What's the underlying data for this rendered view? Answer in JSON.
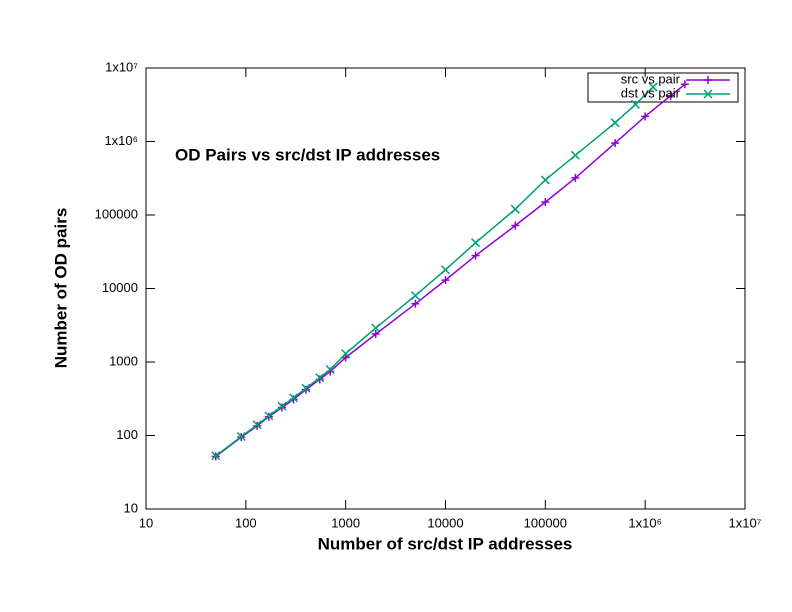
{
  "chart_data": {
    "type": "line",
    "title": "OD Pairs vs src/dst IP addresses",
    "x_label": "Number of src/dst IP addresses",
    "y_label": "Number of OD pairs",
    "log_x": true,
    "log_y": true,
    "legend": "top-right",
    "xlim": [
      10,
      10000000
    ],
    "ylim": [
      10,
      10000000
    ],
    "xticks": [
      10,
      100,
      1000,
      10000,
      100000,
      {
        "value": 1000000,
        "label": "1x10⁶"
      },
      {
        "value": 10000000,
        "label": "1x10⁷"
      }
    ],
    "yticks": [
      10,
      100,
      1000,
      10000,
      100000,
      {
        "value": 1000000,
        "label": "1x10⁶"
      },
      {
        "value": 10000000,
        "label": "1x10⁷"
      }
    ],
    "series": [
      {
        "name": "src vs pair",
        "color": "#9400d3",
        "marker": "plus",
        "x": [
          50,
          90,
          130,
          170,
          230,
          300,
          400,
          550,
          700,
          1000,
          2000,
          5000,
          10000,
          20000,
          50000,
          100000,
          200000,
          500000,
          1000000,
          1800000,
          2500000
        ],
        "values": [
          52,
          95,
          135,
          180,
          240,
          310,
          420,
          580,
          740,
          1150,
          2400,
          6200,
          13000,
          28000,
          72000,
          150000,
          320000,
          950000,
          2200000,
          4200000,
          6000000
        ]
      },
      {
        "name": "dst vs pair",
        "color": "#009e73",
        "marker": "cross",
        "x": [
          50,
          90,
          130,
          170,
          230,
          300,
          400,
          550,
          700,
          1000,
          2000,
          5000,
          10000,
          20000,
          50000,
          100000,
          200000,
          500000,
          800000,
          1200000
        ],
        "values": [
          53,
          97,
          140,
          185,
          250,
          325,
          440,
          610,
          790,
          1300,
          2900,
          8000,
          18000,
          42000,
          120000,
          300000,
          650000,
          1800000,
          3200000,
          5500000
        ]
      }
    ]
  }
}
